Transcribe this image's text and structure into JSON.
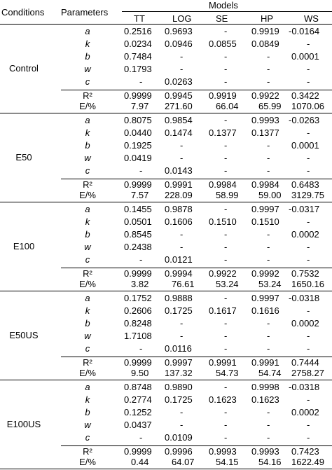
{
  "header": {
    "conditions": "Conditions",
    "parameters": "Parameters",
    "models": "Models",
    "columns": [
      "TT",
      "LOG",
      "SE",
      "HP",
      "WS"
    ]
  },
  "groups": [
    {
      "condition": "Control",
      "rows": [
        {
          "param": "a",
          "values": [
            "0.2516",
            "0.9693",
            "-",
            "0.9919",
            "-0.0164"
          ]
        },
        {
          "param": "k",
          "values": [
            "0.0234",
            "0.0946",
            "0.0855",
            "0.0849",
            "-"
          ]
        },
        {
          "param": "b",
          "values": [
            "0.7484",
            "-",
            "-",
            "-",
            "0.0001"
          ]
        },
        {
          "param": "w",
          "values": [
            "0.1793",
            "-",
            "-",
            "-",
            "-"
          ]
        },
        {
          "param": "c",
          "values": [
            "-",
            "0.0263",
            "-",
            "-",
            "-"
          ]
        }
      ],
      "stats": [
        {
          "param": "R²",
          "values": [
            "0.9999",
            "0.9945",
            "0.9919",
            "0.9922",
            "0.3422"
          ]
        },
        {
          "param": "E/%",
          "values": [
            "7.97",
            "271.60",
            "66.04",
            "65.99",
            "1070.06"
          ]
        }
      ]
    },
    {
      "condition": "E50",
      "rows": [
        {
          "param": "a",
          "values": [
            "0.8075",
            "0.9854",
            "-",
            "0.9993",
            "-0.0263"
          ]
        },
        {
          "param": "k",
          "values": [
            "0.0440",
            "0.1474",
            "0.1377",
            "0.1377",
            "-"
          ]
        },
        {
          "param": "b",
          "values": [
            "0.1925",
            "-",
            "-",
            "-",
            "0.0001"
          ]
        },
        {
          "param": "w",
          "values": [
            "0.0419",
            "-",
            "-",
            "-",
            "-"
          ]
        },
        {
          "param": "c",
          "values": [
            "-",
            "0.0143",
            "-",
            "-",
            "-"
          ]
        }
      ],
      "stats": [
        {
          "param": "R²",
          "values": [
            "0.9999",
            "0.9991",
            "0.9984",
            "0.9984",
            "0.6483"
          ]
        },
        {
          "param": "E/%",
          "values": [
            "7.57",
            "228.09",
            "58.99",
            "59.00",
            "3129.75"
          ]
        }
      ]
    },
    {
      "condition": "E100",
      "rows": [
        {
          "param": "a",
          "values": [
            "0.1455",
            "0.9878",
            "-",
            "0.9997",
            "-0.0317"
          ]
        },
        {
          "param": "k",
          "values": [
            "0.0501",
            "0.1606",
            "0.1510",
            "0.1510",
            "-"
          ]
        },
        {
          "param": "b",
          "values": [
            "0.8545",
            "-",
            "-",
            "-",
            "0.0002"
          ]
        },
        {
          "param": "w",
          "values": [
            "0.2438",
            "-",
            "-",
            "-",
            "-"
          ]
        },
        {
          "param": "c",
          "values": [
            "-",
            "0.0121",
            "-",
            "-",
            "-"
          ]
        }
      ],
      "stats": [
        {
          "param": "R²",
          "values": [
            "0.9999",
            "0.9994",
            "0.9922",
            "0.9992",
            "0.7532"
          ]
        },
        {
          "param": "E/%",
          "values": [
            "3.82",
            "76.61",
            "53.24",
            "53.24",
            "1650.16"
          ]
        }
      ]
    },
    {
      "condition": "E50US",
      "rows": [
        {
          "param": "a",
          "values": [
            "0.1752",
            "0.9888",
            "-",
            "0.9997",
            "-0.0318"
          ]
        },
        {
          "param": "k",
          "values": [
            "0.2606",
            "0.1725",
            "0.1617",
            "0.1616",
            "-"
          ]
        },
        {
          "param": "b",
          "values": [
            "0.8248",
            "-",
            "-",
            "-",
            "0.0002"
          ]
        },
        {
          "param": "w",
          "values": [
            "1.7108",
            "-",
            "-",
            "-",
            "-"
          ]
        },
        {
          "param": "c",
          "values": [
            "-",
            "0.0116",
            "-",
            "-",
            "-"
          ]
        }
      ],
      "stats": [
        {
          "param": "R²",
          "values": [
            "0.9999",
            "0.9997",
            "0.9991",
            "0.9991",
            "0.7444"
          ]
        },
        {
          "param": "E/%",
          "values": [
            "9.50",
            "137.32",
            "54.73",
            "54.74",
            "2758.27"
          ]
        }
      ]
    },
    {
      "condition": "E100US",
      "rows": [
        {
          "param": "a",
          "values": [
            "0.8748",
            "0.9890",
            "-",
            "0.9998",
            "-0.0318"
          ]
        },
        {
          "param": "k",
          "values": [
            "0.2774",
            "0.1725",
            "0.1623",
            "0.1623",
            "-"
          ]
        },
        {
          "param": "b",
          "values": [
            "0.1252",
            "-",
            "-",
            "-",
            "0.0002"
          ]
        },
        {
          "param": "w",
          "values": [
            "0.0437",
            "-",
            "-",
            "-",
            "-"
          ]
        },
        {
          "param": "c",
          "values": [
            "-",
            "0.0109",
            "-",
            "-",
            "-"
          ]
        }
      ],
      "stats": [
        {
          "param": "R²",
          "values": [
            "0.9999",
            "0.9996",
            "0.9993",
            "0.9993",
            "0.7423"
          ]
        },
        {
          "param": "E/%",
          "values": [
            "0.44",
            "64.07",
            "54.15",
            "54.16",
            "1622.49"
          ]
        }
      ]
    }
  ]
}
